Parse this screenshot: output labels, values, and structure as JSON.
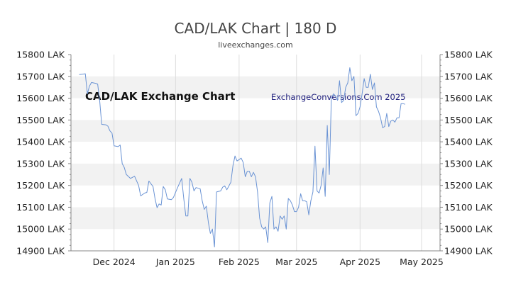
{
  "chart_data": {
    "type": "line",
    "title": "CAD/LAK Chart | 180 D",
    "subtitle": "liveexchanges.com",
    "watermark_left": "CAD/LAK Exchange Chart",
    "watermark_right": "ExchangeConversions.Com 2025",
    "xlabel": "",
    "ylabel": "",
    "ylim": [
      14900,
      15800
    ],
    "yticks": [
      14900,
      15000,
      15100,
      15200,
      15300,
      15400,
      15500,
      15600,
      15700,
      15800
    ],
    "ytick_labels": [
      "14900 LAK",
      "15000 LAK",
      "15100 LAK",
      "15200 LAK",
      "15300 LAK",
      "15400 LAK",
      "15500 LAK",
      "15600 LAK",
      "15700 LAK",
      "15800 LAK"
    ],
    "xlim": [
      0,
      180
    ],
    "xtick_labels": [
      {
        "x": 21,
        "label": "Dec 2024"
      },
      {
        "x": 51,
        "label": "Jan 2025"
      },
      {
        "x": 82,
        "label": "Feb 2025"
      },
      {
        "x": 110,
        "label": "Mar 2025"
      },
      {
        "x": 141,
        "label": "Apr 2025"
      },
      {
        "x": 171,
        "label": "May 2025"
      }
    ],
    "grid": {
      "horizontal_bands": true,
      "vertical_lines": true
    },
    "colors": {
      "line": "#6a93d4",
      "band": "#f2f2f2",
      "vgrid": "#dddddd",
      "axis": "#888888"
    },
    "series": [
      {
        "values": [
          [
            4,
            15708
          ],
          [
            7,
            15712
          ],
          [
            8,
            15620
          ],
          [
            9,
            15655
          ],
          [
            10,
            15672
          ],
          [
            12,
            15668
          ],
          [
            13,
            15665
          ],
          [
            14,
            15590
          ],
          [
            15,
            15480
          ],
          [
            17,
            15478
          ],
          [
            18,
            15472
          ],
          [
            19,
            15450
          ],
          [
            20,
            15440
          ],
          [
            21,
            15382
          ],
          [
            23,
            15378
          ],
          [
            24,
            15385
          ],
          [
            25,
            15300
          ],
          [
            26,
            15282
          ],
          [
            27,
            15250
          ],
          [
            29,
            15232
          ],
          [
            31,
            15242
          ],
          [
            33,
            15200
          ],
          [
            34,
            15152
          ],
          [
            36,
            15165
          ],
          [
            37,
            15168
          ],
          [
            38,
            15220
          ],
          [
            40,
            15195
          ],
          [
            41,
            15140
          ],
          [
            42,
            15098
          ],
          [
            43,
            15115
          ],
          [
            44,
            15110
          ],
          [
            45,
            15195
          ],
          [
            46,
            15180
          ],
          [
            47,
            15138
          ],
          [
            49,
            15135
          ],
          [
            50,
            15145
          ],
          [
            52,
            15190
          ],
          [
            54,
            15232
          ],
          [
            55,
            15140
          ],
          [
            56,
            15060
          ],
          [
            57,
            15060
          ],
          [
            58,
            15232
          ],
          [
            59,
            15215
          ],
          [
            60,
            15175
          ],
          [
            61,
            15190
          ],
          [
            63,
            15185
          ],
          [
            64,
            15130
          ],
          [
            65,
            15090
          ],
          [
            66,
            15105
          ],
          [
            67,
            15030
          ],
          [
            68,
            14980
          ],
          [
            69,
            15000
          ],
          [
            70,
            14918
          ],
          [
            71,
            15170
          ],
          [
            73,
            15175
          ],
          [
            74,
            15192
          ],
          [
            75,
            15198
          ],
          [
            76,
            15180
          ],
          [
            78,
            15215
          ],
          [
            79,
            15290
          ],
          [
            80,
            15335
          ],
          [
            81,
            15312
          ],
          [
            83,
            15325
          ],
          [
            84,
            15305
          ],
          [
            85,
            15240
          ],
          [
            86,
            15265
          ],
          [
            87,
            15265
          ],
          [
            88,
            15240
          ],
          [
            89,
            15260
          ],
          [
            90,
            15240
          ],
          [
            91,
            15170
          ],
          [
            92,
            15050
          ],
          [
            93,
            15010
          ],
          [
            94,
            15000
          ],
          [
            95,
            15010
          ],
          [
            96,
            14938
          ],
          [
            97,
            15120
          ],
          [
            98,
            15150
          ],
          [
            99,
            15000
          ],
          [
            100,
            15010
          ],
          [
            101,
            14990
          ],
          [
            102,
            15060
          ],
          [
            103,
            15045
          ],
          [
            104,
            15060
          ],
          [
            105,
            15000
          ],
          [
            106,
            15140
          ],
          [
            107,
            15130
          ],
          [
            108,
            15110
          ],
          [
            109,
            15080
          ],
          [
            110,
            15080
          ],
          [
            111,
            15100
          ],
          [
            112,
            15162
          ],
          [
            113,
            15130
          ],
          [
            114,
            15130
          ],
          [
            115,
            15125
          ],
          [
            116,
            15065
          ],
          [
            117,
            15130
          ],
          [
            118,
            15170
          ],
          [
            119,
            15380
          ],
          [
            120,
            15175
          ],
          [
            121,
            15165
          ],
          [
            122,
            15200
          ],
          [
            123,
            15280
          ],
          [
            124,
            15150
          ],
          [
            125,
            15475
          ],
          [
            126,
            15250
          ],
          [
            127,
            15600
          ],
          [
            128,
            15620
          ],
          [
            129,
            15610
          ],
          [
            130,
            15590
          ],
          [
            131,
            15680
          ],
          [
            132,
            15580
          ],
          [
            133,
            15590
          ],
          [
            134,
            15650
          ],
          [
            135,
            15670
          ],
          [
            136,
            15740
          ],
          [
            137,
            15680
          ],
          [
            138,
            15700
          ],
          [
            139,
            15520
          ],
          [
            140,
            15530
          ],
          [
            141,
            15560
          ],
          [
            142,
            15620
          ],
          [
            143,
            15690
          ],
          [
            144,
            15650
          ],
          [
            145,
            15650
          ],
          [
            146,
            15710
          ],
          [
            147,
            15640
          ],
          [
            148,
            15670
          ],
          [
            149,
            15560
          ],
          [
            150,
            15540
          ],
          [
            151,
            15510
          ],
          [
            152,
            15465
          ],
          [
            153,
            15470
          ],
          [
            154,
            15530
          ],
          [
            155,
            15470
          ],
          [
            156,
            15495
          ],
          [
            157,
            15500
          ],
          [
            158,
            15490
          ],
          [
            159,
            15510
          ],
          [
            160,
            15510
          ],
          [
            161,
            15575
          ],
          [
            162,
            15575
          ],
          [
            163,
            15572
          ]
        ]
      }
    ]
  }
}
